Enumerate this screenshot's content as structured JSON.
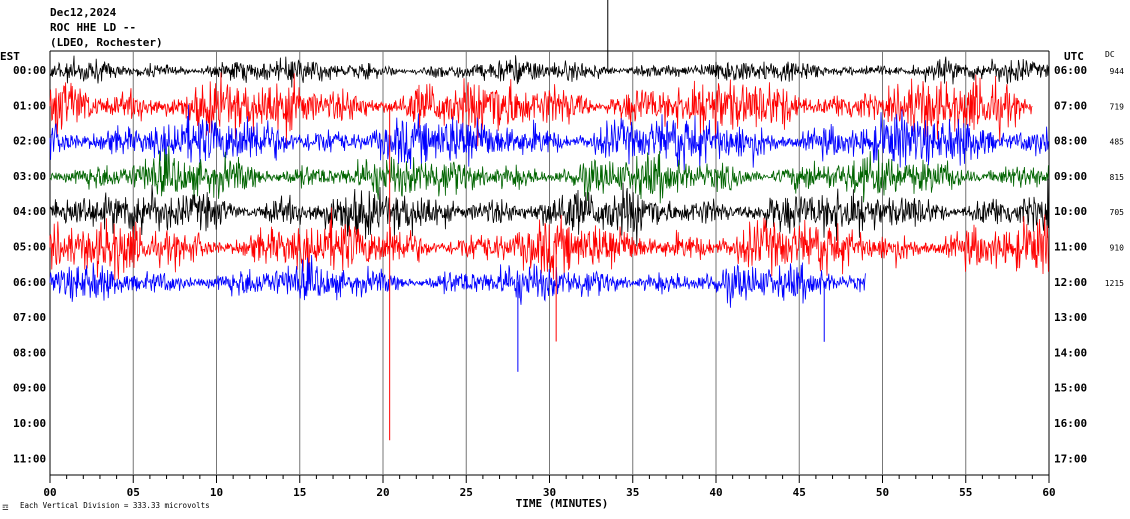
{
  "header": {
    "date": "Dec12,2024",
    "station": "ROC HHE LD --",
    "network": "(LDEO, Rochester)"
  },
  "chart_data": {
    "type": "line",
    "title": "",
    "xlabel": "TIME (MINUTES)",
    "x_ticks": [
      "00",
      "05",
      "10",
      "15",
      "20",
      "25",
      "30",
      "35",
      "40",
      "45",
      "50",
      "55",
      "60"
    ],
    "x_range": [
      0,
      60
    ],
    "left_axis_title": "EST",
    "right_axis_title": "UTC",
    "dc_title": "DC",
    "grid": "vertical lines every 5 minutes",
    "line_colors": [
      "#000000",
      "#ff0000",
      "#0000ff",
      "#006400"
    ],
    "rows": [
      {
        "est": "00:00",
        "utc": "06:00",
        "dc": "944",
        "color": "#000000",
        "minutes_recorded": 60,
        "amp": 9
      },
      {
        "est": "01:00",
        "utc": "07:00",
        "dc": "719",
        "color": "#ff0000",
        "minutes_recorded": 59,
        "amp": 22
      },
      {
        "est": "02:00",
        "utc": "08:00",
        "dc": "485",
        "color": "#0000ff",
        "minutes_recorded": 60,
        "amp": 20
      },
      {
        "est": "03:00",
        "utc": "09:00",
        "dc": "815",
        "color": "#006400",
        "minutes_recorded": 60,
        "amp": 16
      },
      {
        "est": "04:00",
        "utc": "10:00",
        "dc": "705",
        "color": "#000000",
        "minutes_recorded": 60,
        "amp": 18
      },
      {
        "est": "05:00",
        "utc": "11:00",
        "dc": "910",
        "color": "#ff0000",
        "minutes_recorded": 60,
        "amp": 20
      },
      {
        "est": "06:00",
        "utc": "12:00",
        "dc": "1215",
        "color": "#0000ff",
        "minutes_recorded": 49,
        "amp": 14
      },
      {
        "est": "07:00",
        "utc": "13:00",
        "dc": "",
        "color": "#000000",
        "minutes_recorded": 0,
        "amp": 0
      },
      {
        "est": "08:00",
        "utc": "14:00",
        "dc": "",
        "color": "#ff0000",
        "minutes_recorded": 0,
        "amp": 0
      },
      {
        "est": "09:00",
        "utc": "15:00",
        "dc": "",
        "color": "#0000ff",
        "minutes_recorded": 0,
        "amp": 0
      },
      {
        "est": "10:00",
        "utc": "16:00",
        "dc": "",
        "color": "#006400",
        "minutes_recorded": 0,
        "amp": 0
      },
      {
        "est": "11:00",
        "utc": "17:00",
        "dc": "",
        "color": "#000000",
        "minutes_recorded": 0,
        "amp": 0
      }
    ],
    "footnote": "Each Vertical Division =  333.33 microvolts"
  }
}
